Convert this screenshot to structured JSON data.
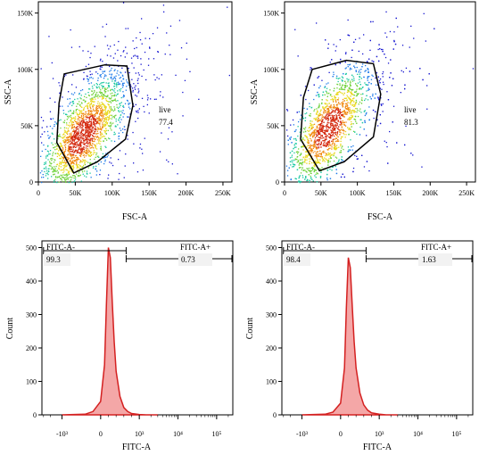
{
  "chart_data": [
    {
      "type": "scatter",
      "xlabel": "FSC-A",
      "ylabel": "SSC-A",
      "xlim": [
        0,
        262144
      ],
      "ylim": [
        0,
        160000
      ],
      "x_ticks": [
        {
          "v": 0,
          "l": "0"
        },
        {
          "v": 50000,
          "l": "50K"
        },
        {
          "v": 100000,
          "l": "100K"
        },
        {
          "v": 150000,
          "l": "150K"
        },
        {
          "v": 200000,
          "l": "200K"
        },
        {
          "v": 250000,
          "l": "250K"
        }
      ],
      "y_ticks": [
        {
          "v": 0,
          "l": "0"
        },
        {
          "v": 50000,
          "l": "50K"
        },
        {
          "v": 100000,
          "l": "100K"
        },
        {
          "v": 150000,
          "l": "150K"
        }
      ],
      "density_center": [
        60000,
        42000
      ],
      "gate": {
        "name": "live",
        "value": "77.4",
        "polygon": [
          [
            35000,
            96000
          ],
          [
            90000,
            104000
          ],
          [
            120000,
            103000
          ],
          [
            128000,
            68000
          ],
          [
            118000,
            38000
          ],
          [
            80000,
            18000
          ],
          [
            48000,
            8000
          ],
          [
            25000,
            35000
          ],
          [
            28000,
            70000
          ]
        ]
      }
    },
    {
      "type": "scatter",
      "xlabel": "FSC-A",
      "ylabel": "SSC-A",
      "xlim": [
        0,
        262144
      ],
      "ylim": [
        0,
        160000
      ],
      "x_ticks": [
        {
          "v": 0,
          "l": "0"
        },
        {
          "v": 50000,
          "l": "50K"
        },
        {
          "v": 100000,
          "l": "100K"
        },
        {
          "v": 150000,
          "l": "150K"
        },
        {
          "v": 200000,
          "l": "200K"
        },
        {
          "v": 250000,
          "l": "250K"
        }
      ],
      "y_ticks": [
        {
          "v": 0,
          "l": "0"
        },
        {
          "v": 50000,
          "l": "50K"
        },
        {
          "v": 100000,
          "l": "100K"
        },
        {
          "v": 150000,
          "l": "150K"
        }
      ],
      "density_center": [
        60000,
        48000
      ],
      "gate": {
        "name": "live",
        "value": "81.3",
        "polygon": [
          [
            38000,
            100000
          ],
          [
            85000,
            108000
          ],
          [
            122000,
            105000
          ],
          [
            132000,
            78000
          ],
          [
            122000,
            40000
          ],
          [
            82000,
            18000
          ],
          [
            48000,
            10000
          ],
          [
            22000,
            38000
          ],
          [
            26000,
            75000
          ]
        ]
      }
    },
    {
      "type": "area",
      "xlabel": "FITC-A",
      "ylabel": "Count",
      "ylim": [
        0,
        520
      ],
      "x_ticks": [
        {
          "v": -1000,
          "l": "-10³"
        },
        {
          "v": 0,
          "l": "0"
        },
        {
          "v": 1000,
          "l": "10³"
        },
        {
          "v": 10000,
          "l": "10⁴"
        },
        {
          "v": 100000,
          "l": "10⁵"
        }
      ],
      "y_ticks": [
        {
          "v": 0,
          "l": "0"
        },
        {
          "v": 100,
          "l": "100"
        },
        {
          "v": 200,
          "l": "200"
        },
        {
          "v": 300,
          "l": "300"
        },
        {
          "v": 400,
          "l": "400"
        },
        {
          "v": 500,
          "l": "500"
        }
      ],
      "series": [
        {
          "x": [
            -1000,
            -400,
            -200,
            0,
            100,
            150,
            200,
            250,
            300,
            350,
            400,
            500,
            600,
            700,
            800,
            1000,
            1500,
            3000
          ],
          "values": [
            0,
            2,
            10,
            40,
            150,
            330,
            500,
            470,
            340,
            220,
            130,
            55,
            22,
            10,
            4,
            1,
            0,
            0
          ]
        }
      ],
      "gates": [
        {
          "name": "FITC-A-",
          "value": "99.3",
          "range": [
            -3000,
            660
          ]
        },
        {
          "name": "FITC-A+",
          "value": "0.73",
          "range": [
            660,
            250000
          ]
        }
      ]
    },
    {
      "type": "area",
      "xlabel": "FITC-A",
      "ylabel": "Count",
      "ylim": [
        0,
        520
      ],
      "x_ticks": [
        {
          "v": -1000,
          "l": "-10³"
        },
        {
          "v": 0,
          "l": "0"
        },
        {
          "v": 1000,
          "l": "10³"
        },
        {
          "v": 10000,
          "l": "10⁴"
        },
        {
          "v": 100000,
          "l": "10⁵"
        }
      ],
      "y_ticks": [
        {
          "v": 0,
          "l": "0"
        },
        {
          "v": 100,
          "l": "100"
        },
        {
          "v": 200,
          "l": "200"
        },
        {
          "v": 300,
          "l": "300"
        },
        {
          "v": 400,
          "l": "400"
        },
        {
          "v": 500,
          "l": "500"
        }
      ],
      "series": [
        {
          "x": [
            -1000,
            -400,
            -200,
            0,
            100,
            150,
            200,
            250,
            300,
            350,
            400,
            500,
            600,
            700,
            800,
            1000,
            1500,
            3000
          ],
          "values": [
            0,
            2,
            8,
            35,
            140,
            320,
            470,
            440,
            330,
            220,
            140,
            65,
            30,
            14,
            6,
            2,
            0,
            0
          ]
        }
      ],
      "gates": [
        {
          "name": "FITC-A-",
          "value": "98.4",
          "range": [
            -3000,
            660
          ]
        },
        {
          "name": "FITC-A+",
          "value": "1.63",
          "range": [
            660,
            250000
          ]
        }
      ]
    }
  ]
}
